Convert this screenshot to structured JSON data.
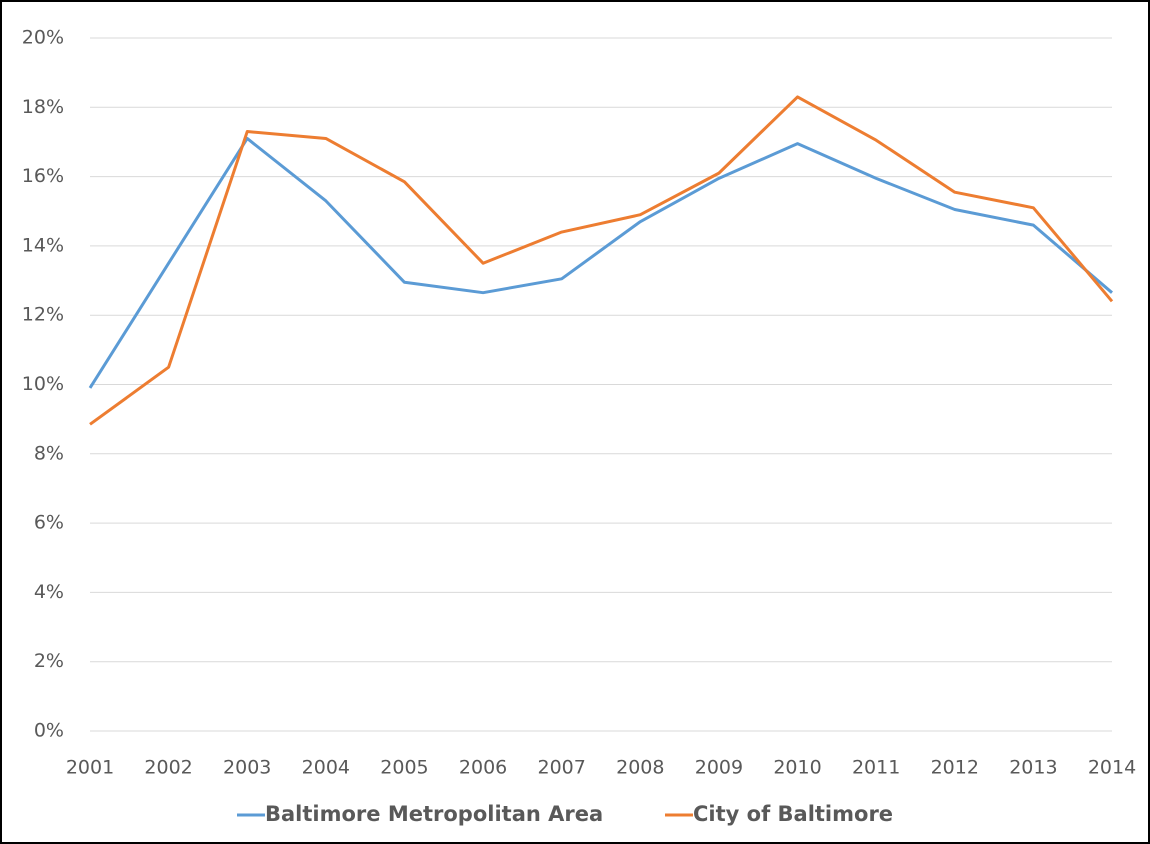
{
  "chart_data": {
    "type": "line",
    "categories": [
      "2001",
      "2002",
      "2003",
      "2004",
      "2005",
      "2006",
      "2007",
      "2008",
      "2009",
      "2010",
      "2011",
      "2012",
      "2013",
      "2014"
    ],
    "series": [
      {
        "name": "Baltimore Metropolitan Area",
        "color": "#5b9bd5",
        "values": [
          9.9,
          13.5,
          17.1,
          15.3,
          12.95,
          12.65,
          13.05,
          14.7,
          15.95,
          16.95,
          15.95,
          15.05,
          14.6,
          12.65
        ]
      },
      {
        "name": "City of Baltimore",
        "color": "#ed7d31",
        "values": [
          8.85,
          10.5,
          17.3,
          17.1,
          15.85,
          13.5,
          14.4,
          14.9,
          16.1,
          18.3,
          17.05,
          15.55,
          15.1,
          12.4
        ]
      }
    ],
    "ylim": [
      0,
      20
    ],
    "yticks": [
      {
        "value": 0,
        "label": "0%"
      },
      {
        "value": 2,
        "label": "2%"
      },
      {
        "value": 4,
        "label": "4%"
      },
      {
        "value": 6,
        "label": "6%"
      },
      {
        "value": 8,
        "label": "8%"
      },
      {
        "value": 10,
        "label": "10%"
      },
      {
        "value": 12,
        "label": "12%"
      },
      {
        "value": 14,
        "label": "14%"
      },
      {
        "value": 16,
        "label": "16%"
      },
      {
        "value": 18,
        "label": "18%"
      },
      {
        "value": 20,
        "label": "20%"
      }
    ],
    "grid": true,
    "legend": "bottom"
  }
}
